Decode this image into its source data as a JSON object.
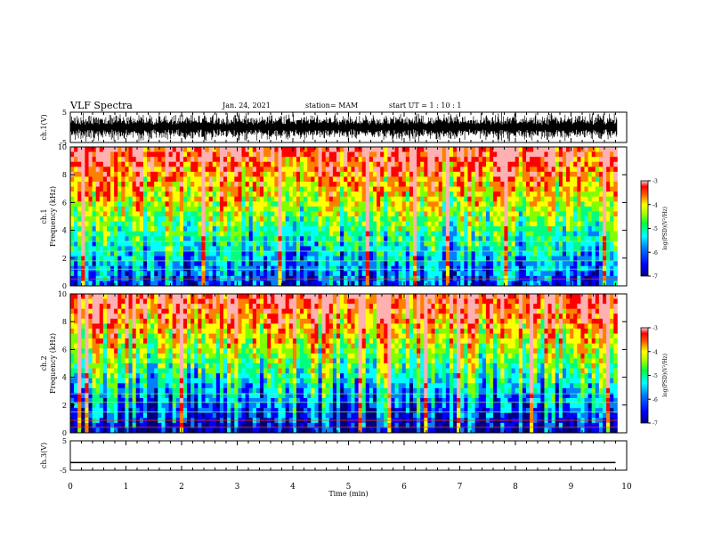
{
  "header": {
    "title": "VLF Spectra",
    "date": "Jan. 24, 2021",
    "station": "station= MAM",
    "start": "start  UT =   1 : 10 : 1"
  },
  "chart_data": [
    {
      "type": "line",
      "name": "ch1-waveform",
      "ylabel": "ch.1(V)",
      "ylim": [
        -5,
        5
      ],
      "yticks": [
        "5",
        "-5"
      ],
      "xlim": [
        0,
        10
      ],
      "description_values": "dense oscillating waveform spanning roughly -5 to 5 V over the full record"
    },
    {
      "type": "heatmap",
      "name": "ch1-spectrogram",
      "ylabel": "ch.1 Frequency (kHz)",
      "ylim": [
        0,
        10
      ],
      "yticks": [
        "0",
        "2",
        "4",
        "6",
        "8",
        "10"
      ],
      "xlim": [
        0,
        10
      ],
      "colorbar": {
        "label": "log(PSD)(V²/Hz)",
        "range": [
          -7,
          -3
        ],
        "ticks": [
          "-3",
          "-4",
          "-5",
          "-6",
          "-7"
        ]
      }
    },
    {
      "type": "heatmap",
      "name": "ch2-spectrogram",
      "ylabel": "ch.2 Frequency (kHz)",
      "ylim": [
        0,
        10
      ],
      "yticks": [
        "0",
        "2",
        "4",
        "6",
        "8",
        "10"
      ],
      "xlim": [
        0,
        10
      ],
      "colorbar": {
        "label": "log(PSD)(V²/Hz)",
        "range": [
          -7,
          -3
        ],
        "ticks": [
          "-3",
          "-4",
          "-5",
          "-6",
          "-7"
        ]
      }
    },
    {
      "type": "line",
      "name": "ch3-waveform",
      "ylabel": "ch.3(V)",
      "ylim": [
        -5,
        5
      ],
      "yticks": [
        "5",
        "-5"
      ],
      "xlim": [
        0,
        10
      ],
      "x": [
        0,
        9.8
      ],
      "values": [
        -2.4,
        -2.4
      ]
    }
  ],
  "xaxis": {
    "label": "Time (min)",
    "ticks": [
      "0",
      "1",
      "2",
      "3",
      "4",
      "5",
      "6",
      "7",
      "8",
      "9",
      "10"
    ],
    "data_end_min": 9.83
  },
  "colors": {
    "colormap": [
      "#00007f",
      "#0000ff",
      "#0080ff",
      "#00ffff",
      "#00ff80",
      "#80ff00",
      "#ffff00",
      "#ff8000",
      "#ff0000",
      "#ffb0b0"
    ]
  }
}
